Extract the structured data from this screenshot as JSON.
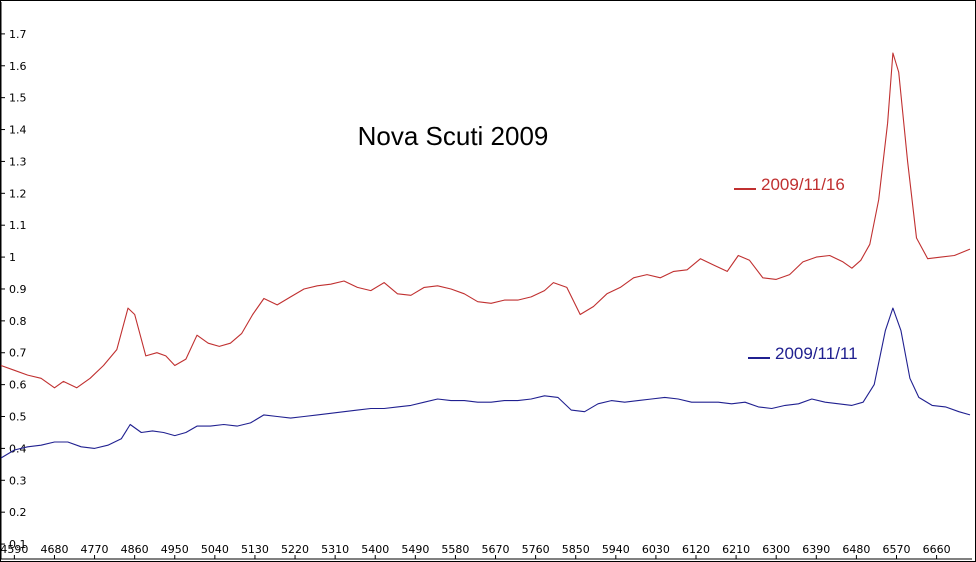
{
  "chart_data": {
    "type": "line",
    "title": "Nova Scuti 2009",
    "xlabel": "",
    "ylabel": "",
    "xlim": [
      4560,
      6735
    ],
    "ylim": [
      0.05,
      1.8
    ],
    "x_ticks": [
      4590,
      4680,
      4770,
      4860,
      4950,
      5040,
      5130,
      5220,
      5310,
      5400,
      5490,
      5580,
      5670,
      5760,
      5850,
      5940,
      6030,
      6120,
      6210,
      6300,
      6390,
      6480,
      6570,
      6660
    ],
    "y_ticks": [
      0.1,
      0.2,
      0.3,
      0.4,
      0.5,
      0.6,
      0.7,
      0.8,
      0.9,
      1,
      1.1,
      1.2,
      1.3,
      1.4,
      1.5,
      1.6,
      1.7
    ],
    "grid": false,
    "legend": "right",
    "series": [
      {
        "name": "2009/11/16",
        "color": "#c03030",
        "points": [
          [
            4560,
            0.66
          ],
          [
            4590,
            0.645
          ],
          [
            4620,
            0.63
          ],
          [
            4650,
            0.62
          ],
          [
            4680,
            0.59
          ],
          [
            4700,
            0.61
          ],
          [
            4730,
            0.59
          ],
          [
            4760,
            0.62
          ],
          [
            4790,
            0.66
          ],
          [
            4820,
            0.71
          ],
          [
            4845,
            0.84
          ],
          [
            4860,
            0.82
          ],
          [
            4885,
            0.69
          ],
          [
            4910,
            0.7
          ],
          [
            4930,
            0.69
          ],
          [
            4950,
            0.66
          ],
          [
            4975,
            0.68
          ],
          [
            5000,
            0.755
          ],
          [
            5025,
            0.73
          ],
          [
            5050,
            0.72
          ],
          [
            5075,
            0.73
          ],
          [
            5100,
            0.76
          ],
          [
            5125,
            0.82
          ],
          [
            5150,
            0.87
          ],
          [
            5180,
            0.85
          ],
          [
            5210,
            0.875
          ],
          [
            5240,
            0.9
          ],
          [
            5270,
            0.91
          ],
          [
            5300,
            0.915
          ],
          [
            5330,
            0.925
          ],
          [
            5360,
            0.905
          ],
          [
            5390,
            0.895
          ],
          [
            5420,
            0.92
          ],
          [
            5450,
            0.885
          ],
          [
            5480,
            0.88
          ],
          [
            5510,
            0.905
          ],
          [
            5540,
            0.91
          ],
          [
            5570,
            0.9
          ],
          [
            5600,
            0.885
          ],
          [
            5630,
            0.86
          ],
          [
            5660,
            0.855
          ],
          [
            5690,
            0.865
          ],
          [
            5720,
            0.865
          ],
          [
            5750,
            0.875
          ],
          [
            5780,
            0.895
          ],
          [
            5800,
            0.92
          ],
          [
            5830,
            0.905
          ],
          [
            5860,
            0.82
          ],
          [
            5890,
            0.845
          ],
          [
            5920,
            0.885
          ],
          [
            5950,
            0.905
          ],
          [
            5980,
            0.935
          ],
          [
            6010,
            0.945
          ],
          [
            6040,
            0.935
          ],
          [
            6070,
            0.955
          ],
          [
            6100,
            0.96
          ],
          [
            6130,
            0.995
          ],
          [
            6160,
            0.975
          ],
          [
            6190,
            0.955
          ],
          [
            6215,
            1.005
          ],
          [
            6240,
            0.99
          ],
          [
            6270,
            0.935
          ],
          [
            6300,
            0.93
          ],
          [
            6330,
            0.945
          ],
          [
            6360,
            0.985
          ],
          [
            6390,
            1.0
          ],
          [
            6420,
            1.005
          ],
          [
            6450,
            0.985
          ],
          [
            6470,
            0.965
          ],
          [
            6490,
            0.99
          ],
          [
            6510,
            1.04
          ],
          [
            6530,
            1.18
          ],
          [
            6550,
            1.42
          ],
          [
            6562,
            1.64
          ],
          [
            6575,
            1.58
          ],
          [
            6595,
            1.3
          ],
          [
            6615,
            1.06
          ],
          [
            6640,
            0.995
          ],
          [
            6670,
            1.0
          ],
          [
            6700,
            1.005
          ],
          [
            6735,
            1.025
          ]
        ]
      },
      {
        "name": "2009/11/11",
        "color": "#202090",
        "points": [
          [
            4560,
            0.37
          ],
          [
            4590,
            0.395
          ],
          [
            4620,
            0.405
          ],
          [
            4650,
            0.41
          ],
          [
            4680,
            0.42
          ],
          [
            4710,
            0.42
          ],
          [
            4740,
            0.405
          ],
          [
            4770,
            0.4
          ],
          [
            4800,
            0.41
          ],
          [
            4830,
            0.43
          ],
          [
            4850,
            0.475
          ],
          [
            4875,
            0.45
          ],
          [
            4900,
            0.455
          ],
          [
            4925,
            0.45
          ],
          [
            4950,
            0.44
          ],
          [
            4975,
            0.45
          ],
          [
            5000,
            0.47
          ],
          [
            5030,
            0.47
          ],
          [
            5060,
            0.475
          ],
          [
            5090,
            0.47
          ],
          [
            5120,
            0.48
          ],
          [
            5150,
            0.505
          ],
          [
            5180,
            0.5
          ],
          [
            5210,
            0.495
          ],
          [
            5240,
            0.5
          ],
          [
            5270,
            0.505
          ],
          [
            5300,
            0.51
          ],
          [
            5330,
            0.515
          ],
          [
            5360,
            0.52
          ],
          [
            5390,
            0.525
          ],
          [
            5420,
            0.525
          ],
          [
            5450,
            0.53
          ],
          [
            5480,
            0.535
          ],
          [
            5510,
            0.545
          ],
          [
            5540,
            0.555
          ],
          [
            5570,
            0.55
          ],
          [
            5600,
            0.55
          ],
          [
            5630,
            0.545
          ],
          [
            5660,
            0.545
          ],
          [
            5690,
            0.55
          ],
          [
            5720,
            0.55
          ],
          [
            5750,
            0.555
          ],
          [
            5780,
            0.565
          ],
          [
            5810,
            0.56
          ],
          [
            5840,
            0.52
          ],
          [
            5870,
            0.515
          ],
          [
            5900,
            0.54
          ],
          [
            5930,
            0.55
          ],
          [
            5960,
            0.545
          ],
          [
            5990,
            0.55
          ],
          [
            6020,
            0.555
          ],
          [
            6050,
            0.56
          ],
          [
            6080,
            0.555
          ],
          [
            6110,
            0.545
          ],
          [
            6140,
            0.545
          ],
          [
            6170,
            0.545
          ],
          [
            6200,
            0.54
          ],
          [
            6230,
            0.545
          ],
          [
            6260,
            0.53
          ],
          [
            6290,
            0.525
          ],
          [
            6320,
            0.535
          ],
          [
            6350,
            0.54
          ],
          [
            6380,
            0.555
          ],
          [
            6410,
            0.545
          ],
          [
            6440,
            0.54
          ],
          [
            6470,
            0.535
          ],
          [
            6495,
            0.545
          ],
          [
            6520,
            0.6
          ],
          [
            6545,
            0.77
          ],
          [
            6562,
            0.84
          ],
          [
            6580,
            0.77
          ],
          [
            6600,
            0.62
          ],
          [
            6620,
            0.56
          ],
          [
            6650,
            0.535
          ],
          [
            6680,
            0.53
          ],
          [
            6710,
            0.515
          ],
          [
            6735,
            0.505
          ]
        ]
      }
    ]
  }
}
